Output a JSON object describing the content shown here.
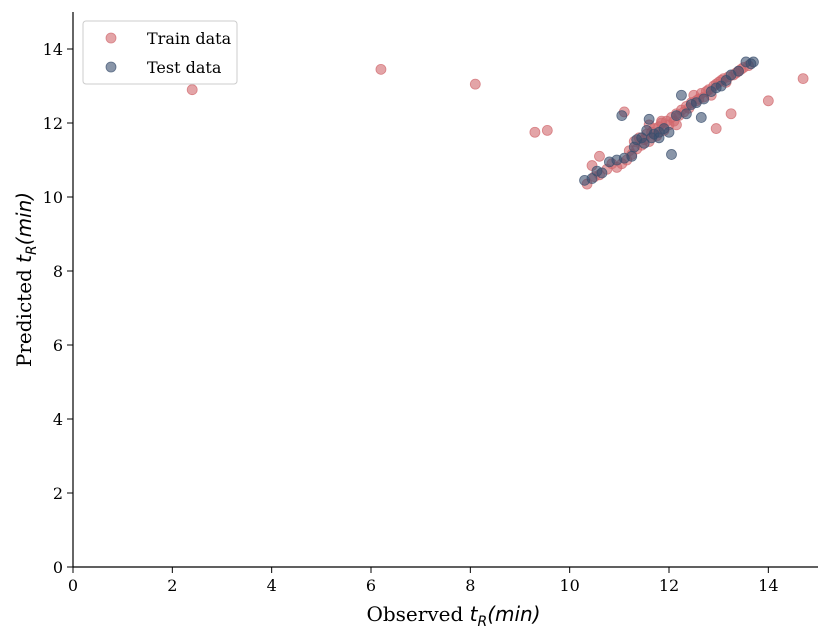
{
  "chart_data": {
    "type": "scatter",
    "title": "",
    "xlabel": {
      "prefix": "Observed ",
      "symbol": "t",
      "subscript": "R",
      "suffix": "(min)"
    },
    "ylabel": {
      "prefix": "Predicted ",
      "symbol": "t",
      "subscript": "R",
      "suffix": "(min)"
    },
    "xlim": [
      0,
      15
    ],
    "ylim": [
      0,
      15
    ],
    "xticks": [
      0,
      2,
      4,
      6,
      8,
      10,
      12,
      14
    ],
    "yticks": [
      0,
      2,
      4,
      6,
      8,
      10,
      12,
      14
    ],
    "grid": false,
    "legend_position": "top-left",
    "series": [
      {
        "name": "Train data",
        "color": "#d0676c",
        "points": [
          [
            2.4,
            12.9
          ],
          [
            6.2,
            13.45
          ],
          [
            8.1,
            13.05
          ],
          [
            9.3,
            11.75
          ],
          [
            9.55,
            11.8
          ],
          [
            14.7,
            13.2
          ],
          [
            14.0,
            12.6
          ],
          [
            13.25,
            12.25
          ],
          [
            12.95,
            11.85
          ],
          [
            11.1,
            12.3
          ],
          [
            10.6,
            11.1
          ],
          [
            10.35,
            10.35
          ],
          [
            10.45,
            10.85
          ],
          [
            10.5,
            10.55
          ],
          [
            10.6,
            10.6
          ],
          [
            10.75,
            10.75
          ],
          [
            10.85,
            10.9
          ],
          [
            10.95,
            10.8
          ],
          [
            11.05,
            10.9
          ],
          [
            11.15,
            11.0
          ],
          [
            11.2,
            11.25
          ],
          [
            11.3,
            11.5
          ],
          [
            11.35,
            11.3
          ],
          [
            11.4,
            11.6
          ],
          [
            11.45,
            11.4
          ],
          [
            11.5,
            11.55
          ],
          [
            11.55,
            11.7
          ],
          [
            11.6,
            11.5
          ],
          [
            11.65,
            11.75
          ],
          [
            11.7,
            11.85
          ],
          [
            11.75,
            11.65
          ],
          [
            11.8,
            11.9
          ],
          [
            11.85,
            12.0
          ],
          [
            11.9,
            11.8
          ],
          [
            11.95,
            12.05
          ],
          [
            12.0,
            11.95
          ],
          [
            12.05,
            12.15
          ],
          [
            12.1,
            12.05
          ],
          [
            12.15,
            12.25
          ],
          [
            12.2,
            12.2
          ],
          [
            12.25,
            12.35
          ],
          [
            12.3,
            12.3
          ],
          [
            12.35,
            12.45
          ],
          [
            12.4,
            12.4
          ],
          [
            12.45,
            12.55
          ],
          [
            12.5,
            12.75
          ],
          [
            12.55,
            12.6
          ],
          [
            12.6,
            12.65
          ],
          [
            12.65,
            12.8
          ],
          [
            12.7,
            12.7
          ],
          [
            12.75,
            12.85
          ],
          [
            12.8,
            12.9
          ],
          [
            12.85,
            12.75
          ],
          [
            12.9,
            13.0
          ],
          [
            12.95,
            13.05
          ],
          [
            13.0,
            13.1
          ],
          [
            13.05,
            13.15
          ],
          [
            13.1,
            13.2
          ],
          [
            13.15,
            13.1
          ],
          [
            13.2,
            13.25
          ],
          [
            13.3,
            13.3
          ],
          [
            13.35,
            13.35
          ],
          [
            13.4,
            13.4
          ],
          [
            13.45,
            13.45
          ],
          [
            13.5,
            13.5
          ],
          [
            13.6,
            13.55
          ],
          [
            11.25,
            11.15
          ],
          [
            11.6,
            11.95
          ],
          [
            11.85,
            12.05
          ],
          [
            12.15,
            11.95
          ]
        ]
      },
      {
        "name": "Test data",
        "color": "#3a4f6e",
        "points": [
          [
            10.3,
            10.45
          ],
          [
            10.45,
            10.5
          ],
          [
            10.55,
            10.7
          ],
          [
            10.65,
            10.65
          ],
          [
            10.8,
            10.95
          ],
          [
            10.95,
            11.0
          ],
          [
            11.05,
            12.2
          ],
          [
            11.1,
            11.05
          ],
          [
            11.25,
            11.1
          ],
          [
            11.3,
            11.35
          ],
          [
            11.35,
            11.55
          ],
          [
            11.45,
            11.6
          ],
          [
            11.5,
            11.45
          ],
          [
            11.55,
            11.8
          ],
          [
            11.65,
            11.6
          ],
          [
            11.7,
            11.7
          ],
          [
            11.8,
            11.75
          ],
          [
            11.9,
            11.85
          ],
          [
            12.0,
            11.75
          ],
          [
            12.05,
            11.15
          ],
          [
            12.15,
            12.2
          ],
          [
            12.25,
            12.75
          ],
          [
            12.35,
            12.25
          ],
          [
            12.45,
            12.5
          ],
          [
            12.55,
            12.55
          ],
          [
            12.65,
            12.15
          ],
          [
            12.7,
            12.65
          ],
          [
            12.85,
            12.85
          ],
          [
            12.95,
            12.95
          ],
          [
            13.05,
            13.0
          ],
          [
            13.15,
            13.15
          ],
          [
            13.25,
            13.3
          ],
          [
            13.4,
            13.4
          ],
          [
            13.55,
            13.65
          ],
          [
            13.65,
            13.6
          ],
          [
            13.7,
            13.65
          ],
          [
            11.6,
            12.1
          ],
          [
            11.8,
            11.6
          ]
        ]
      }
    ]
  }
}
